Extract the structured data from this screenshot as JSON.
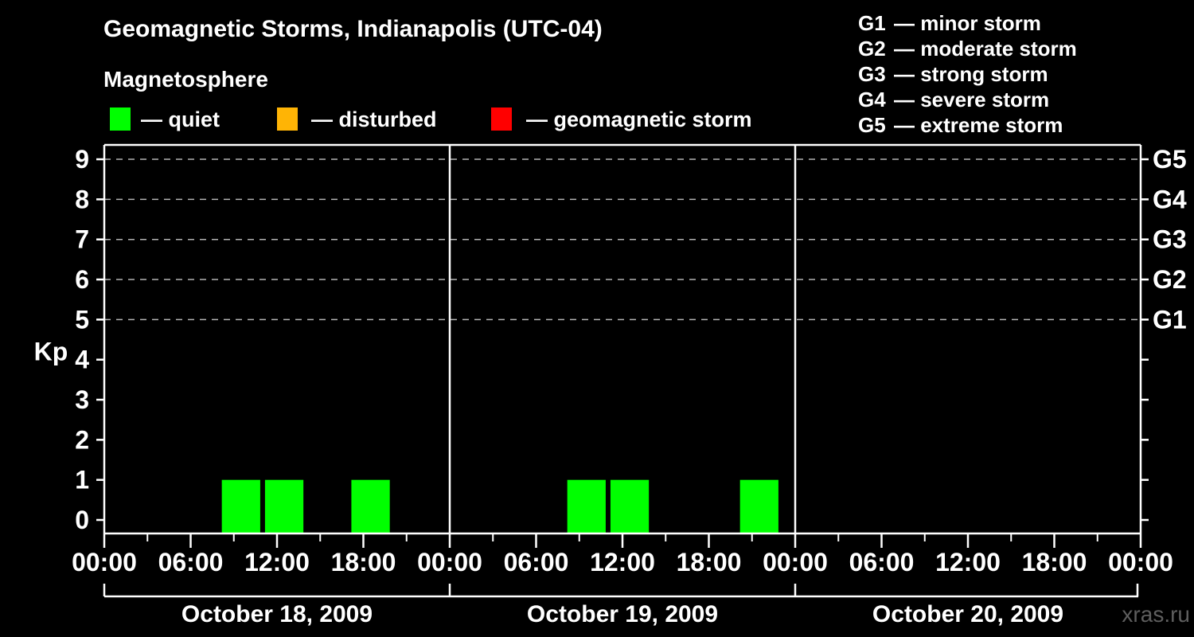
{
  "header": {
    "title": "Geomagnetic Storms, Indianapolis (UTC-04)",
    "subtitle": "Magnetosphere"
  },
  "status_legend": {
    "items": [
      {
        "name": "quiet",
        "label": "— quiet",
        "color": "#00ff00"
      },
      {
        "name": "disturbed",
        "label": "— disturbed",
        "color": "#ffb405"
      },
      {
        "name": "geomagnetic-storm",
        "label": "— geomagnetic storm",
        "color": "#ff0000"
      }
    ]
  },
  "g_scale_legend": {
    "items": [
      {
        "code": "G1",
        "label": "— minor storm"
      },
      {
        "code": "G2",
        "label": "— moderate storm"
      },
      {
        "code": "G3",
        "label": "— strong storm"
      },
      {
        "code": "G4",
        "label": "— severe storm"
      },
      {
        "code": "G5",
        "label": "— extreme storm"
      }
    ]
  },
  "watermark": "xras.ru",
  "chart_data": {
    "type": "bar",
    "title": "Geomagnetic Storms, Indianapolis (UTC-04)",
    "ylabel": "Kp",
    "ylim": [
      0,
      9
    ],
    "yticks": [
      0,
      1,
      2,
      3,
      4,
      5,
      6,
      7,
      8,
      9
    ],
    "dashed_grid_levels": [
      5,
      6,
      7,
      8,
      9
    ],
    "right_axis_labels": [
      {
        "kp": 9,
        "label": "G5"
      },
      {
        "kp": 8,
        "label": "G4"
      },
      {
        "kp": 7,
        "label": "G3"
      },
      {
        "kp": 6,
        "label": "G2"
      },
      {
        "kp": 5,
        "label": "G1"
      }
    ],
    "x_axis": {
      "hours_per_day": 24,
      "bin_hours": 3,
      "major_tick_hours": [
        0,
        6,
        12,
        18
      ],
      "minor_tick_hours": [
        3,
        9,
        15,
        21
      ],
      "tick_labels": {
        "0": "00:00",
        "6": "06:00",
        "12": "12:00",
        "18": "18:00"
      },
      "closing_tick_label": "00:00"
    },
    "bar_colors_by_status": {
      "quiet": "#00ff00",
      "disturbed": "#ffb405",
      "storm": "#ff0000"
    },
    "days": [
      {
        "date": "October 18, 2009",
        "bars": [
          {
            "start_hour": 8,
            "end_hour": 11,
            "kp": 1,
            "status": "quiet"
          },
          {
            "start_hour": 11,
            "end_hour": 14,
            "kp": 1,
            "status": "quiet"
          },
          {
            "start_hour": 17,
            "end_hour": 20,
            "kp": 1,
            "status": "quiet"
          }
        ]
      },
      {
        "date": "October 19, 2009",
        "bars": [
          {
            "start_hour": 8,
            "end_hour": 11,
            "kp": 1,
            "status": "quiet"
          },
          {
            "start_hour": 11,
            "end_hour": 14,
            "kp": 1,
            "status": "quiet"
          },
          {
            "start_hour": 20,
            "end_hour": 23,
            "kp": 1,
            "status": "quiet"
          }
        ]
      },
      {
        "date": "October 20, 2009",
        "bars": []
      }
    ]
  }
}
